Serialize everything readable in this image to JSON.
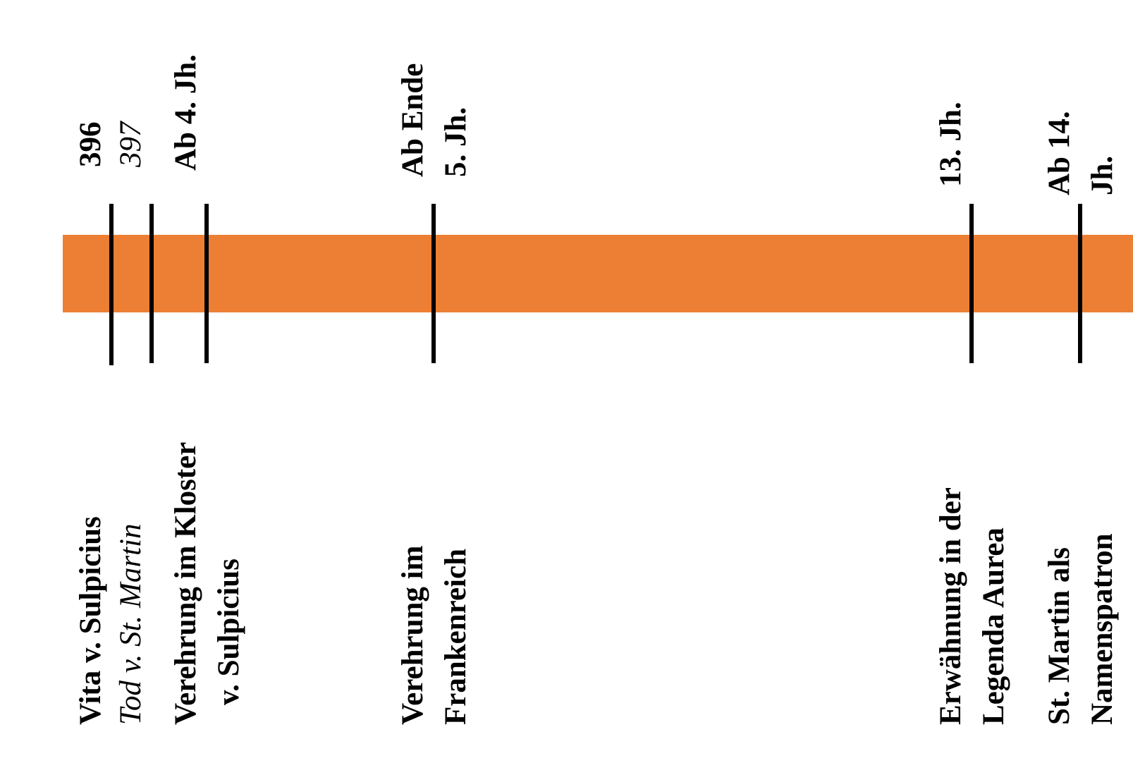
{
  "timeline": {
    "band_color": "#EC7F33",
    "tick_color": "#000000",
    "events": [
      {
        "date": "396",
        "description": "Vita v. Sulpicius",
        "italic": false
      },
      {
        "date": "397",
        "description": "Tod v. St. Martin",
        "italic": true
      },
      {
        "date": "Ab 4. Jh.",
        "description": [
          "Verehrung im Kloster",
          "v. Sulpicius"
        ],
        "italic": false
      },
      {
        "date": [
          "Ab Ende",
          "5. Jh."
        ],
        "description": [
          "Verehrung im",
          "Frankenreich"
        ],
        "italic": false
      },
      {
        "date": "13. Jh.",
        "description": [
          "Erwähnung in der",
          "Legenda Aurea"
        ],
        "italic": false
      },
      {
        "date": [
          "Ab 14.",
          "Jh."
        ],
        "description": [
          "St. Martin als",
          "Namenspatron"
        ],
        "italic": false
      }
    ]
  }
}
